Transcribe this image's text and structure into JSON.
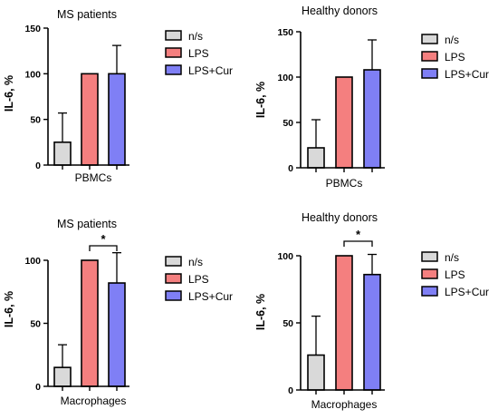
{
  "chart_data": [
    {
      "type": "bar",
      "title": "MS patients",
      "ylabel": "IL-6, %",
      "xlabel": "PBMCs",
      "ylim": [
        0,
        150
      ],
      "yticks": [
        "0",
        "50",
        "100",
        "150"
      ],
      "series": [
        {
          "name": "n/s",
          "color": "#d9d9d9",
          "value": 25,
          "error": 32
        },
        {
          "name": "LPS",
          "color": "#f47f7f",
          "value": 100,
          "error": 0
        },
        {
          "name": "LPS+Cur",
          "color": "#7f7ff5",
          "value": 100,
          "error": 31
        }
      ],
      "significance": null
    },
    {
      "type": "bar",
      "title": "Healthy donors",
      "ylabel": "IL-6, %",
      "xlabel": "PBMCs",
      "ylim": [
        0,
        150
      ],
      "yticks": [
        "0",
        "50",
        "100",
        "150"
      ],
      "series": [
        {
          "name": "n/s",
          "color": "#d9d9d9",
          "value": 22,
          "error": 31
        },
        {
          "name": "LPS",
          "color": "#f47f7f",
          "value": 100,
          "error": 0
        },
        {
          "name": "LPS+Cur",
          "color": "#7f7ff5",
          "value": 108,
          "error": 33
        }
      ],
      "significance": null
    },
    {
      "type": "bar",
      "title": "MS patients",
      "ylabel": "IL-6, %",
      "xlabel": "Macrophages",
      "ylim": [
        0,
        100
      ],
      "yticks": [
        "0",
        "50",
        "100"
      ],
      "series": [
        {
          "name": "n/s",
          "color": "#d9d9d9",
          "value": 15,
          "error": 18
        },
        {
          "name": "LPS",
          "color": "#f47f7f",
          "value": 100,
          "error": 0
        },
        {
          "name": "LPS+Cur",
          "color": "#7f7ff5",
          "value": 82,
          "error": 24
        }
      ],
      "significance": {
        "between": [
          "LPS",
          "LPS+Cur"
        ],
        "label": "*"
      }
    },
    {
      "type": "bar",
      "title": "Healthy donors",
      "ylabel": "IL-6, %",
      "xlabel": "Macrophages",
      "ylim": [
        0,
        100
      ],
      "yticks": [
        "0",
        "50",
        "100"
      ],
      "series": [
        {
          "name": "n/s",
          "color": "#d9d9d9",
          "value": 26,
          "error": 29
        },
        {
          "name": "LPS",
          "color": "#f47f7f",
          "value": 100,
          "error": 0
        },
        {
          "name": "LPS+Cur",
          "color": "#7f7ff5",
          "value": 86,
          "error": 15
        }
      ],
      "significance": {
        "between": [
          "LPS",
          "LPS+Cur"
        ],
        "label": "*"
      }
    }
  ]
}
